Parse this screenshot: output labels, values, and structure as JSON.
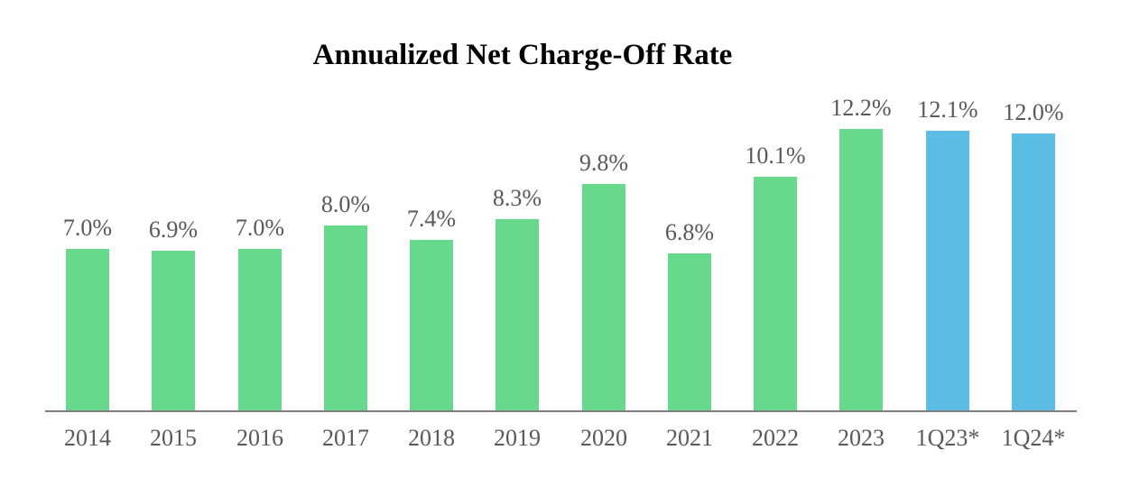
{
  "page": {
    "background": "#ffffff"
  },
  "chart_data": {
    "type": "bar",
    "title": "Annualized Net Charge-Off Rate",
    "categories": [
      "2014",
      "2015",
      "2016",
      "2017",
      "2018",
      "2019",
      "2020",
      "2021",
      "2022",
      "2023",
      "1Q23*",
      "1Q24*"
    ],
    "values": [
      7.0,
      6.9,
      7.0,
      8.0,
      7.4,
      8.3,
      9.8,
      6.8,
      10.1,
      12.2,
      12.1,
      12.0
    ],
    "value_labels": [
      "7.0%",
      "6.9%",
      "7.0%",
      "8.0%",
      "7.4%",
      "8.3%",
      "9.8%",
      "6.8%",
      "10.1%",
      "12.2%",
      "12.1%",
      "12.0%"
    ],
    "bar_colors": [
      "#68D98C",
      "#68D98C",
      "#68D98C",
      "#68D98C",
      "#68D98C",
      "#68D98C",
      "#68D98C",
      "#68D98C",
      "#68D98C",
      "#68D98C",
      "#5BBDE4",
      "#5BBDE4"
    ],
    "xlabel": "",
    "ylabel": "",
    "ylim": [
      0,
      13.2
    ],
    "grid": false,
    "legend": "none",
    "y_axis_visible": false,
    "x_axis_line_color": "#7f7f7f",
    "label_color": "#595959",
    "title_color": "#000000"
  }
}
